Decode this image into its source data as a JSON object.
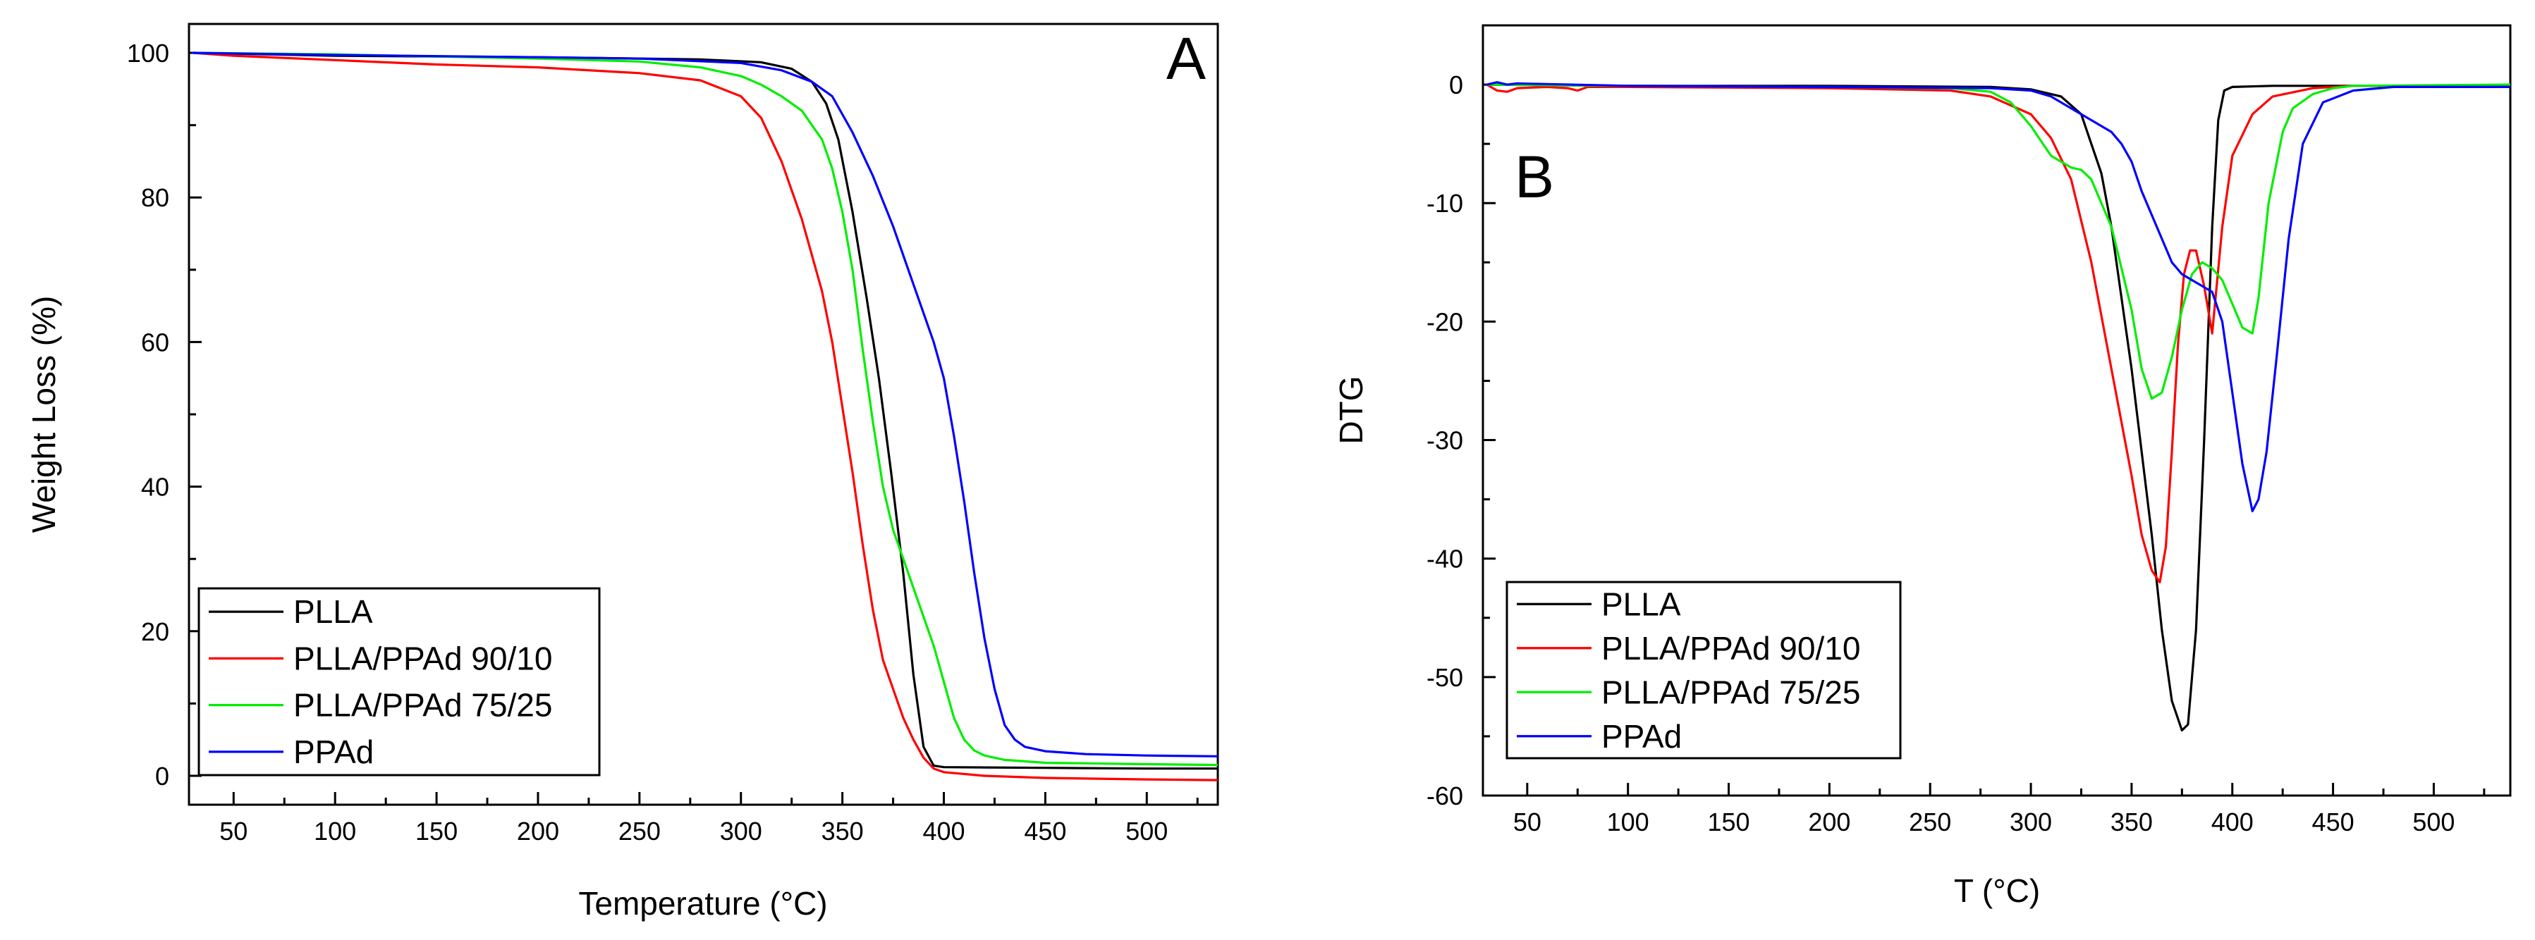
{
  "chart_data": [
    {
      "type": "line",
      "panel_label": "A",
      "xlabel": "Temperature (°C)",
      "ylabel": "Weight Loss (%)",
      "xlim": [
        28,
        535
      ],
      "ylim": [
        -4,
        104
      ],
      "xticks": [
        50,
        100,
        150,
        200,
        250,
        300,
        350,
        400,
        450,
        500
      ],
      "yticks": [
        0,
        20,
        40,
        60,
        80,
        100
      ],
      "legend_position": "bottom-left",
      "series": [
        {
          "name": "PLLA",
          "color": "#000000",
          "x": [
            30,
            100,
            200,
            280,
            310,
            325,
            335,
            342,
            348,
            355,
            362,
            368,
            374,
            380,
            385,
            390,
            395,
            400,
            450,
            500,
            535
          ],
          "y": [
            100,
            99.6,
            99.4,
            99.1,
            98.7,
            97.8,
            96,
            93,
            88,
            78,
            66,
            55,
            42,
            28,
            14,
            4,
            1.4,
            1.2,
            1.1,
            1.0,
            1.0
          ]
        },
        {
          "name": "PLLA/PPAd 90/10",
          "color": "#ff0000",
          "x": [
            30,
            50,
            100,
            150,
            200,
            250,
            280,
            300,
            310,
            320,
            330,
            340,
            345,
            350,
            355,
            360,
            365,
            370,
            375,
            380,
            385,
            390,
            395,
            400,
            420,
            450,
            500,
            535
          ],
          "y": [
            100,
            99.6,
            99,
            98.4,
            98,
            97.2,
            96.2,
            94,
            91,
            85,
            77,
            67,
            60,
            51,
            42,
            32,
            23,
            16,
            12,
            8,
            5,
            2.5,
            1,
            0.5,
            0,
            -0.3,
            -0.5,
            -0.6
          ]
        },
        {
          "name": "PLLA/PPAd 75/25",
          "color": "#00ee00",
          "x": [
            30,
            100,
            200,
            250,
            280,
            300,
            310,
            320,
            330,
            340,
            345,
            350,
            355,
            360,
            365,
            370,
            375,
            380,
            385,
            390,
            395,
            400,
            405,
            410,
            415,
            420,
            430,
            450,
            500,
            535
          ],
          "y": [
            100,
            99.8,
            99.2,
            98.8,
            98,
            96.8,
            95.6,
            94,
            92,
            88,
            84,
            78,
            70,
            59,
            49,
            40,
            34,
            30,
            26,
            22,
            18,
            13,
            8,
            5,
            3.5,
            2.8,
            2.2,
            1.8,
            1.6,
            1.5
          ]
        },
        {
          "name": "PPAd",
          "color": "#0000ff",
          "x": [
            30,
            100,
            200,
            250,
            300,
            320,
            335,
            345,
            355,
            365,
            375,
            385,
            395,
            400,
            405,
            410,
            415,
            420,
            425,
            430,
            435,
            440,
            450,
            470,
            500,
            535
          ],
          "y": [
            100,
            99.7,
            99.4,
            99.2,
            98.6,
            97.6,
            96,
            94,
            89,
            83,
            76,
            68,
            60,
            55,
            47,
            38,
            28,
            19,
            12,
            7,
            5,
            4,
            3.4,
            3.0,
            2.8,
            2.7
          ]
        }
      ]
    },
    {
      "type": "line",
      "panel_label": "B",
      "xlabel": "T (°C)",
      "ylabel": "DTG",
      "xlim": [
        28,
        538
      ],
      "ylim": [
        -60,
        5
      ],
      "xticks": [
        50,
        100,
        150,
        200,
        250,
        300,
        350,
        400,
        450,
        500
      ],
      "yticks": [
        0,
        -10,
        -20,
        -30,
        -40,
        -50,
        -60
      ],
      "legend_position": "bottom-left",
      "series": [
        {
          "name": "PLLA",
          "color": "#000000",
          "x": [
            30,
            100,
            200,
            280,
            300,
            315,
            325,
            330,
            335,
            340,
            345,
            350,
            355,
            360,
            365,
            370,
            375,
            378,
            382,
            386,
            390,
            393,
            396,
            400,
            420,
            450,
            500,
            538
          ],
          "y": [
            0,
            -0.1,
            -0.1,
            -0.2,
            -0.4,
            -1,
            -2.5,
            -5,
            -7.5,
            -12,
            -18,
            -24,
            -31,
            -38,
            -46,
            -52,
            -54.5,
            -54,
            -46,
            -30,
            -12,
            -3,
            -0.5,
            -0.2,
            -0.1,
            -0.1,
            -0.1,
            -0.1
          ]
        },
        {
          "name": "PLLA/PPAd 90/10",
          "color": "#ff0000",
          "x": [
            30,
            35,
            40,
            45,
            60,
            70,
            75,
            80,
            100,
            200,
            260,
            280,
            300,
            310,
            320,
            330,
            340,
            350,
            355,
            360,
            364,
            367,
            370,
            373,
            376,
            379,
            382,
            386,
            390,
            395,
            400,
            410,
            420,
            440,
            460,
            538
          ],
          "y": [
            0,
            -0.5,
            -0.6,
            -0.3,
            -0.2,
            -0.3,
            -0.5,
            -0.2,
            -0.2,
            -0.3,
            -0.5,
            -1,
            -2.5,
            -4.5,
            -8,
            -15,
            -24,
            -33,
            -38,
            -41,
            -42,
            -39,
            -31,
            -22,
            -16,
            -14,
            -14,
            -17,
            -21,
            -12,
            -6,
            -2.5,
            -1,
            -0.3,
            -0.1,
            -0.1
          ]
        },
        {
          "name": "PLLA/PPAd 75/25",
          "color": "#00ee00",
          "x": [
            30,
            100,
            200,
            260,
            280,
            290,
            300,
            310,
            320,
            325,
            330,
            340,
            350,
            355,
            360,
            365,
            370,
            375,
            380,
            385,
            390,
            395,
            400,
            405,
            410,
            413,
            418,
            425,
            430,
            440,
            450,
            460,
            538
          ],
          "y": [
            0,
            -0.1,
            -0.2,
            -0.3,
            -0.6,
            -1.5,
            -3.5,
            -6,
            -7,
            -7.2,
            -8,
            -12,
            -19,
            -24,
            -26.5,
            -26,
            -23,
            -19,
            -16,
            -15,
            -15.5,
            -16.5,
            -18.5,
            -20.5,
            -21,
            -18,
            -10,
            -4,
            -2,
            -0.8,
            -0.3,
            -0.1,
            0
          ]
        },
        {
          "name": "PPAd",
          "color": "#0000ff",
          "x": [
            30,
            35,
            40,
            45,
            100,
            200,
            280,
            300,
            310,
            320,
            330,
            340,
            345,
            350,
            355,
            360,
            365,
            370,
            375,
            380,
            385,
            390,
            395,
            400,
            405,
            410,
            413,
            417,
            422,
            428,
            435,
            445,
            460,
            480,
            538
          ],
          "y": [
            0,
            0.2,
            0,
            0.1,
            -0.1,
            -0.2,
            -0.3,
            -0.5,
            -1,
            -2,
            -3,
            -4,
            -5,
            -6.5,
            -9,
            -11,
            -13,
            -15,
            -16,
            -16.5,
            -17,
            -17.5,
            -20,
            -26,
            -32,
            -36,
            -35,
            -31,
            -23,
            -13,
            -5,
            -1.5,
            -0.5,
            -0.2,
            -0.2
          ]
        }
      ]
    }
  ]
}
